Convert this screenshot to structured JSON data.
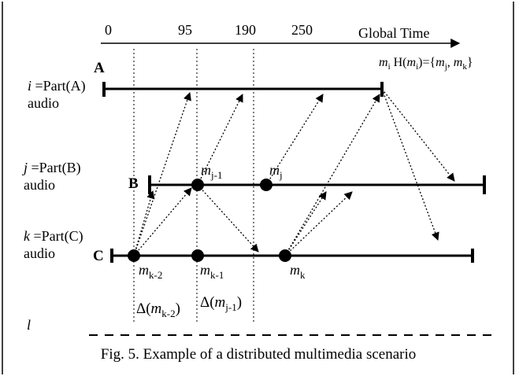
{
  "axis": {
    "title": "Global Time",
    "ticks": [
      "0",
      "95",
      "190",
      "250"
    ]
  },
  "processes": [
    {
      "letter": "A",
      "name_var": "i",
      "name_rest": " =Part(A)",
      "media": "audio"
    },
    {
      "letter": "B",
      "name_var": "j",
      "name_rest": " =Part(B)",
      "media": "audio"
    },
    {
      "letter": "C",
      "name_var": "k",
      "name_rest": " =Part(C)",
      "media": "audio"
    }
  ],
  "extra_process": {
    "name_var": "l"
  },
  "messages": [
    {
      "base": "m",
      "sub": "j-1"
    },
    {
      "base": "m",
      "sub": "j"
    },
    {
      "base": "m",
      "sub": "k-2"
    },
    {
      "base": "m",
      "sub": "k-1"
    },
    {
      "base": "m",
      "sub": "k"
    }
  ],
  "history": {
    "m": "m",
    "m_sub": "i",
    "h": " H(",
    "m2": "m",
    "m2_sub": "i",
    "eq": ")={",
    "mj": "m",
    "mj_sub": "j",
    "comma": ", ",
    "mk": "m",
    "mk_sub": "k",
    "close": "}"
  },
  "deltas": [
    {
      "symbol": "Δ(",
      "m": "m",
      "sub": "k-2",
      "close": ")"
    },
    {
      "symbol": "Δ(",
      "m": "m",
      "sub": "j-1",
      "close": ")"
    }
  ],
  "caption": "Fig. 5. Example of a distributed multimedia scenario"
}
